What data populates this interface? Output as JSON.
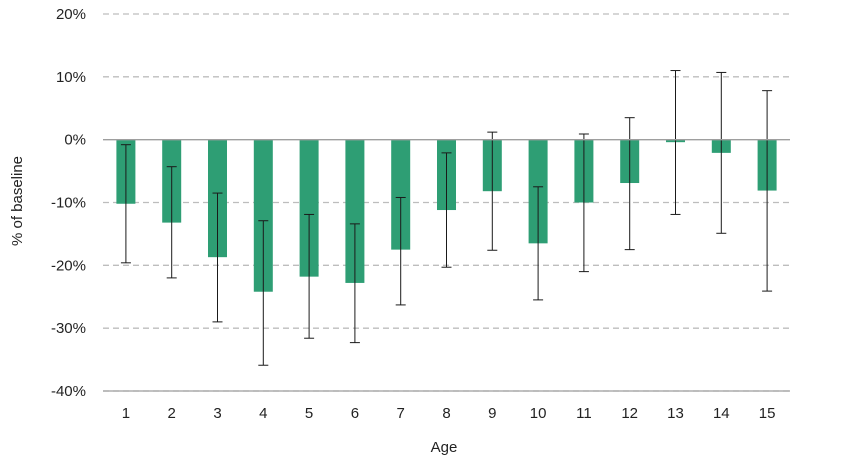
{
  "chart_data": {
    "type": "bar",
    "title": "",
    "xlabel": "Age",
    "ylabel": "% of baseline",
    "ylim": [
      -40,
      20
    ],
    "yticks": [
      20,
      10,
      0,
      -10,
      -20,
      -30,
      -40
    ],
    "ytick_labels": [
      "20%",
      "10%",
      "0%",
      "-10%",
      "-20%",
      "-30%",
      "-40%"
    ],
    "grid": "horizontal-dashed",
    "legend": "none",
    "categories": [
      "1",
      "2",
      "3",
      "4",
      "5",
      "6",
      "7",
      "8",
      "9",
      "10",
      "11",
      "12",
      "13",
      "14",
      "15"
    ],
    "values": [
      -10.2,
      -13.2,
      -18.7,
      -24.2,
      -21.8,
      -22.8,
      -17.5,
      -11.2,
      -8.2,
      -16.5,
      -10.0,
      -6.9,
      -0.4,
      -2.1,
      -8.1
    ],
    "error_low": [
      -19.6,
      -22.0,
      -29.0,
      -35.9,
      -31.6,
      -32.3,
      -26.3,
      -20.3,
      -17.6,
      -25.5,
      -21.0,
      -17.5,
      -11.9,
      -14.9,
      -24.1
    ],
    "error_high": [
      -0.8,
      -4.3,
      -8.5,
      -12.9,
      -11.9,
      -13.4,
      -9.2,
      -2.1,
      1.2,
      -7.5,
      0.9,
      3.5,
      11.0,
      10.7,
      7.8
    ],
    "colors": {
      "bar": "#2e9e74",
      "error_bar": "#1a1a1a",
      "grid": "#bdbdbd",
      "axis": "#9e9e9e"
    }
  }
}
